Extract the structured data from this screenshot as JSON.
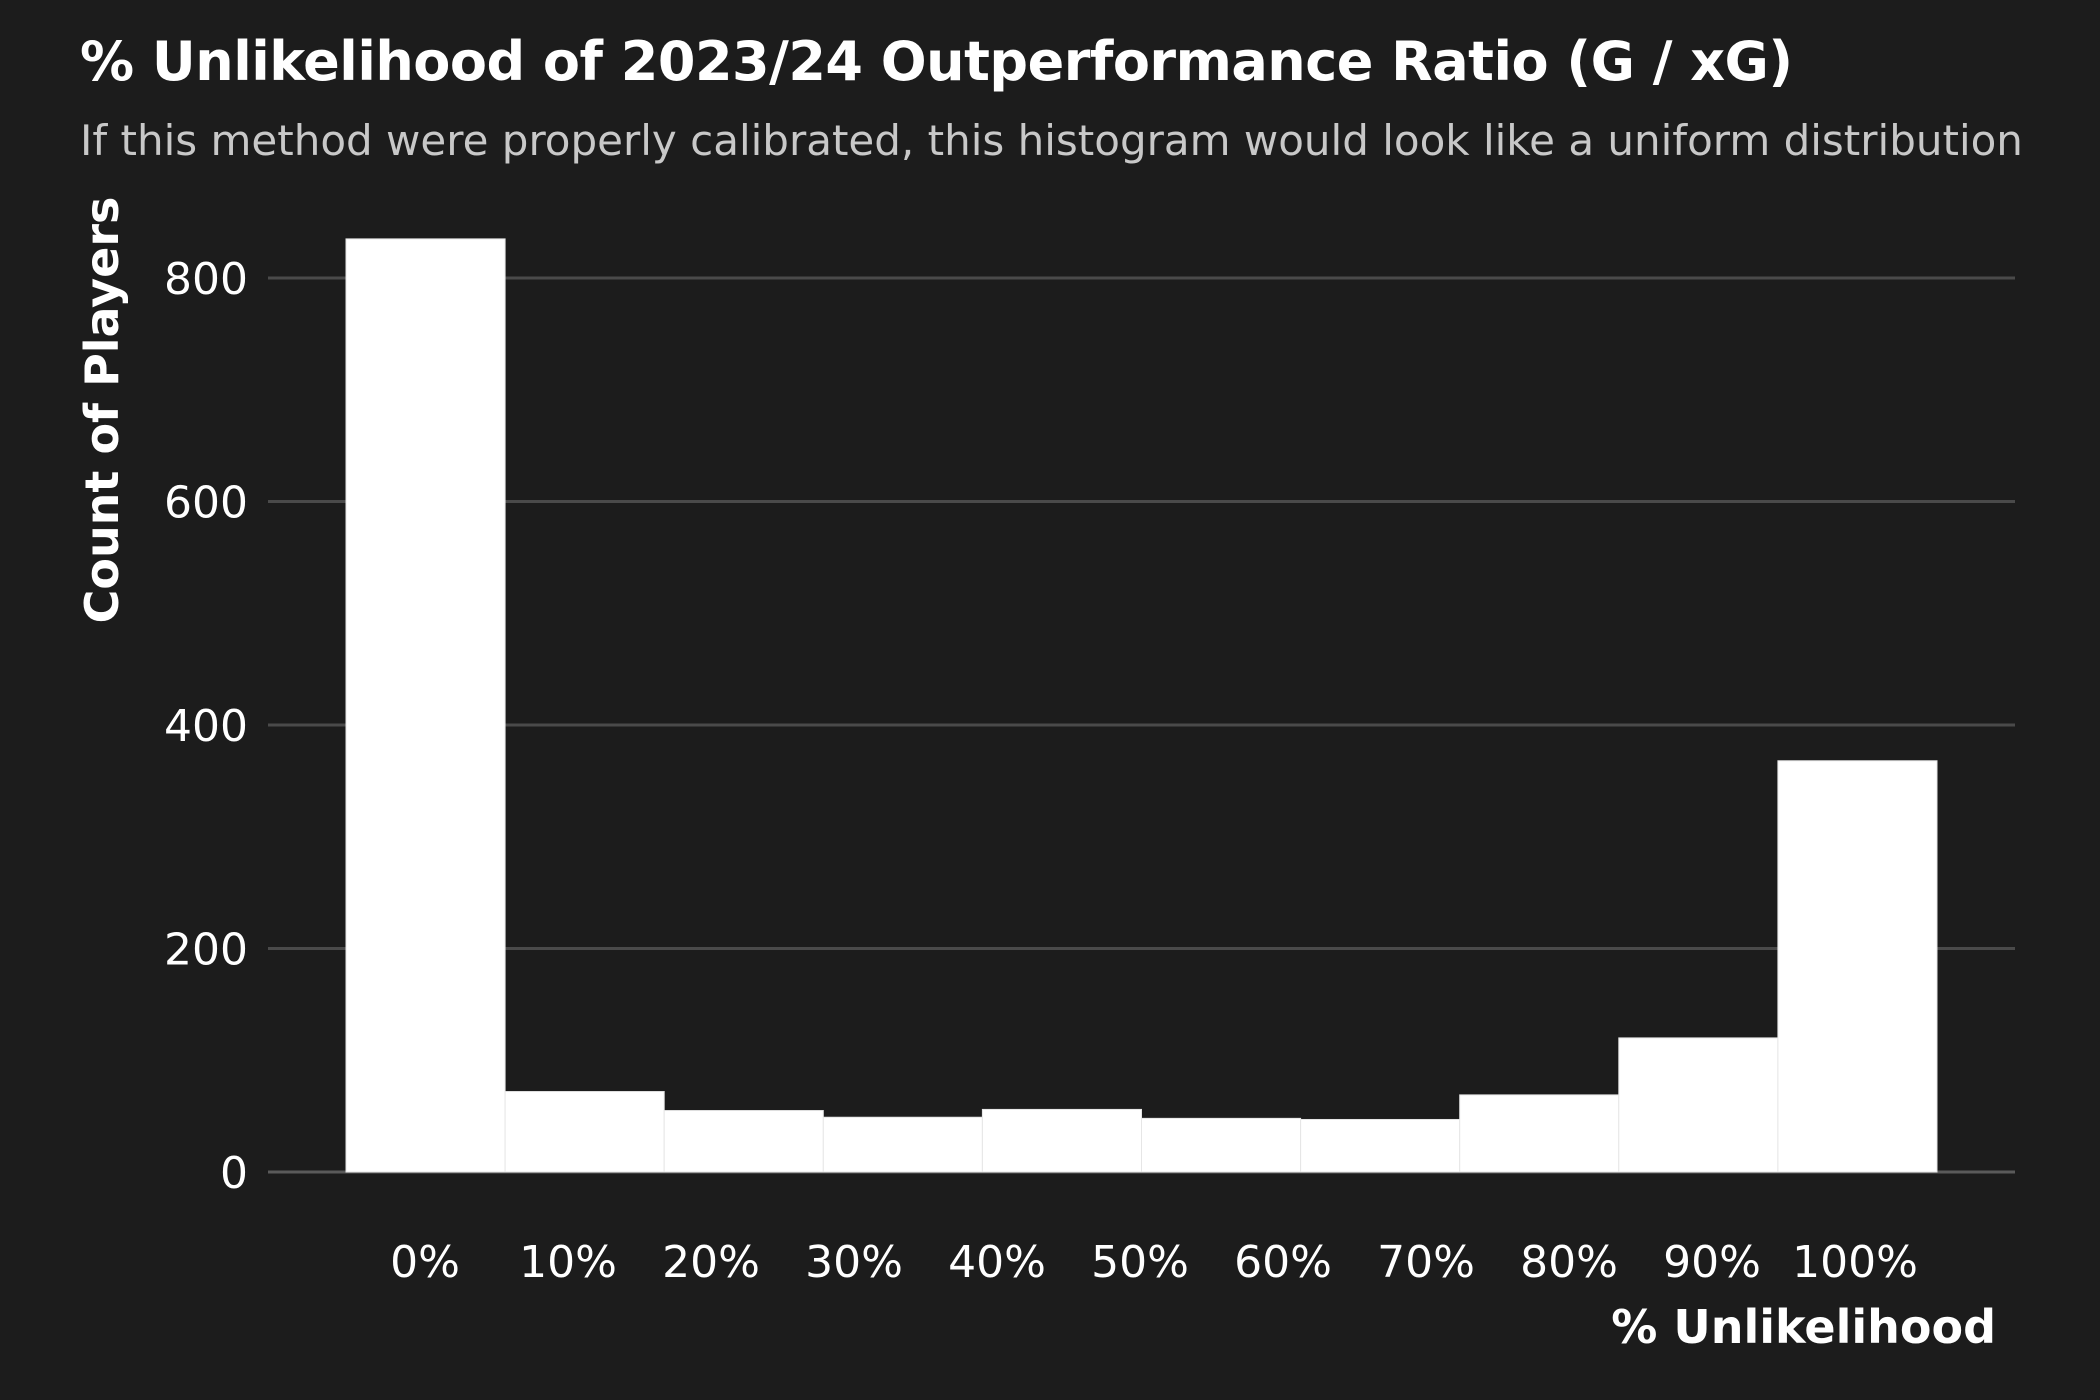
{
  "title": "% Unlikelihood of 2023/24 Outperformance Ratio (G / xG)",
  "subtitle": "If this method were properly calibrated, this histogram would look like a uniform distribution",
  "chart_data": {
    "type": "bar",
    "title": "% Unlikelihood of 2023/24 Outperformance Ratio (G / xG)",
    "subtitle": "If this method were properly calibrated, this histogram would look like a uniform distribution",
    "xlabel": "% Unlikelihood",
    "ylabel": "Count of Players",
    "x_tick_labels": [
      "0%",
      "10%",
      "20%",
      "30%",
      "40%",
      "50%",
      "60%",
      "70%",
      "80%",
      "90%",
      "100%"
    ],
    "y_ticks": [
      0,
      200,
      400,
      600,
      800
    ],
    "ylim": [
      0,
      840
    ],
    "xlim": [
      0,
      1
    ],
    "bins": [
      {
        "start": 0.0,
        "end": 0.1,
        "count": 835
      },
      {
        "start": 0.1,
        "end": 0.2,
        "count": 72
      },
      {
        "start": 0.2,
        "end": 0.3,
        "count": 55
      },
      {
        "start": 0.3,
        "end": 0.4,
        "count": 49
      },
      {
        "start": 0.4,
        "end": 0.5,
        "count": 56
      },
      {
        "start": 0.5,
        "end": 0.6,
        "count": 48
      },
      {
        "start": 0.6,
        "end": 0.7,
        "count": 47
      },
      {
        "start": 0.7,
        "end": 0.8,
        "count": 69
      },
      {
        "start": 0.8,
        "end": 0.9,
        "count": 120
      },
      {
        "start": 0.9,
        "end": 1.0,
        "count": 368
      }
    ],
    "grid": true,
    "legend": "none",
    "colors": {
      "background": "#1c1c1c",
      "bar": "#ffffff",
      "grid": "#4a4a4a",
      "text": "#ffffff",
      "subtitle": "#c8c8c8"
    }
  }
}
